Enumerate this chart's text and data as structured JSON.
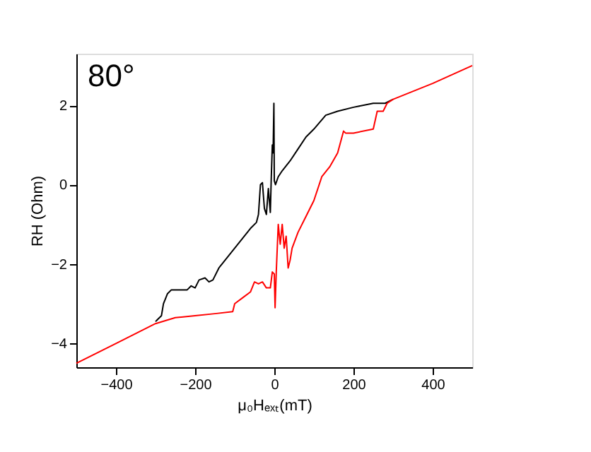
{
  "chart_data": {
    "type": "line",
    "xlabel": "μ₀Hₑₓₜ(mT)",
    "ylabel": "RH (Ohm)",
    "annotations": [
      "80°"
    ],
    "xlim": [
      -500,
      500
    ],
    "xticks": [
      -400,
      -200,
      0,
      200,
      400
    ],
    "ylim": [
      -4.6,
      3.3
    ],
    "yticks": [
      -4,
      -2,
      0,
      2
    ],
    "grid": false,
    "legend": false,
    "marker": "none",
    "line_style": "solid",
    "series": [
      {
        "color": "#000000",
        "x": [
          -300,
          -295,
          -285,
          -280,
          -270,
          -260,
          -220,
          -210,
          -200,
          -190,
          -175,
          -165,
          -155,
          -140,
          -120,
          -100,
          -80,
          -60,
          -45,
          -40,
          -35,
          -30,
          -25,
          -20,
          -15,
          -10,
          -8,
          -5,
          -3,
          -1,
          0,
          3,
          10,
          20,
          40,
          60,
          80,
          100,
          130,
          160,
          200,
          250,
          280,
          300
        ],
        "values": [
          -3.45,
          -3.4,
          -3.3,
          -3.0,
          -2.75,
          -2.65,
          -2.65,
          -2.55,
          -2.6,
          -2.4,
          -2.35,
          -2.45,
          -2.4,
          -2.1,
          -1.85,
          -1.6,
          -1.35,
          -1.1,
          -0.95,
          -0.75,
          0.0,
          0.05,
          -0.6,
          -0.75,
          -0.1,
          -0.7,
          0.05,
          1.0,
          0.8,
          2.05,
          0.1,
          0.0,
          0.2,
          0.35,
          0.6,
          0.9,
          1.2,
          1.4,
          1.75,
          1.85,
          1.95,
          2.05,
          2.05,
          2.15
        ]
      },
      {
        "color": "#ff0000",
        "x": [
          -500,
          -400,
          -300,
          -250,
          -200,
          -150,
          -105,
          -100,
          -80,
          -60,
          -50,
          -40,
          -30,
          -20,
          -10,
          -5,
          0,
          2,
          5,
          10,
          15,
          20,
          25,
          30,
          35,
          40,
          45,
          60,
          80,
          100,
          120,
          140,
          160,
          175,
          180,
          200,
          250,
          260,
          275,
          285,
          300,
          400,
          500
        ],
        "values": [
          -4.5,
          -4.0,
          -3.5,
          -3.35,
          -3.3,
          -3.25,
          -3.2,
          -3.0,
          -2.85,
          -2.7,
          -2.45,
          -2.5,
          -2.45,
          -2.6,
          -2.6,
          -2.2,
          -2.25,
          -3.1,
          -2.2,
          -1.0,
          -1.5,
          -1.0,
          -1.6,
          -1.3,
          -2.1,
          -1.9,
          -1.6,
          -1.2,
          -0.8,
          -0.4,
          0.2,
          0.45,
          0.8,
          1.35,
          1.3,
          1.3,
          1.4,
          1.85,
          1.85,
          2.05,
          2.15,
          2.55,
          3.0
        ]
      }
    ]
  }
}
